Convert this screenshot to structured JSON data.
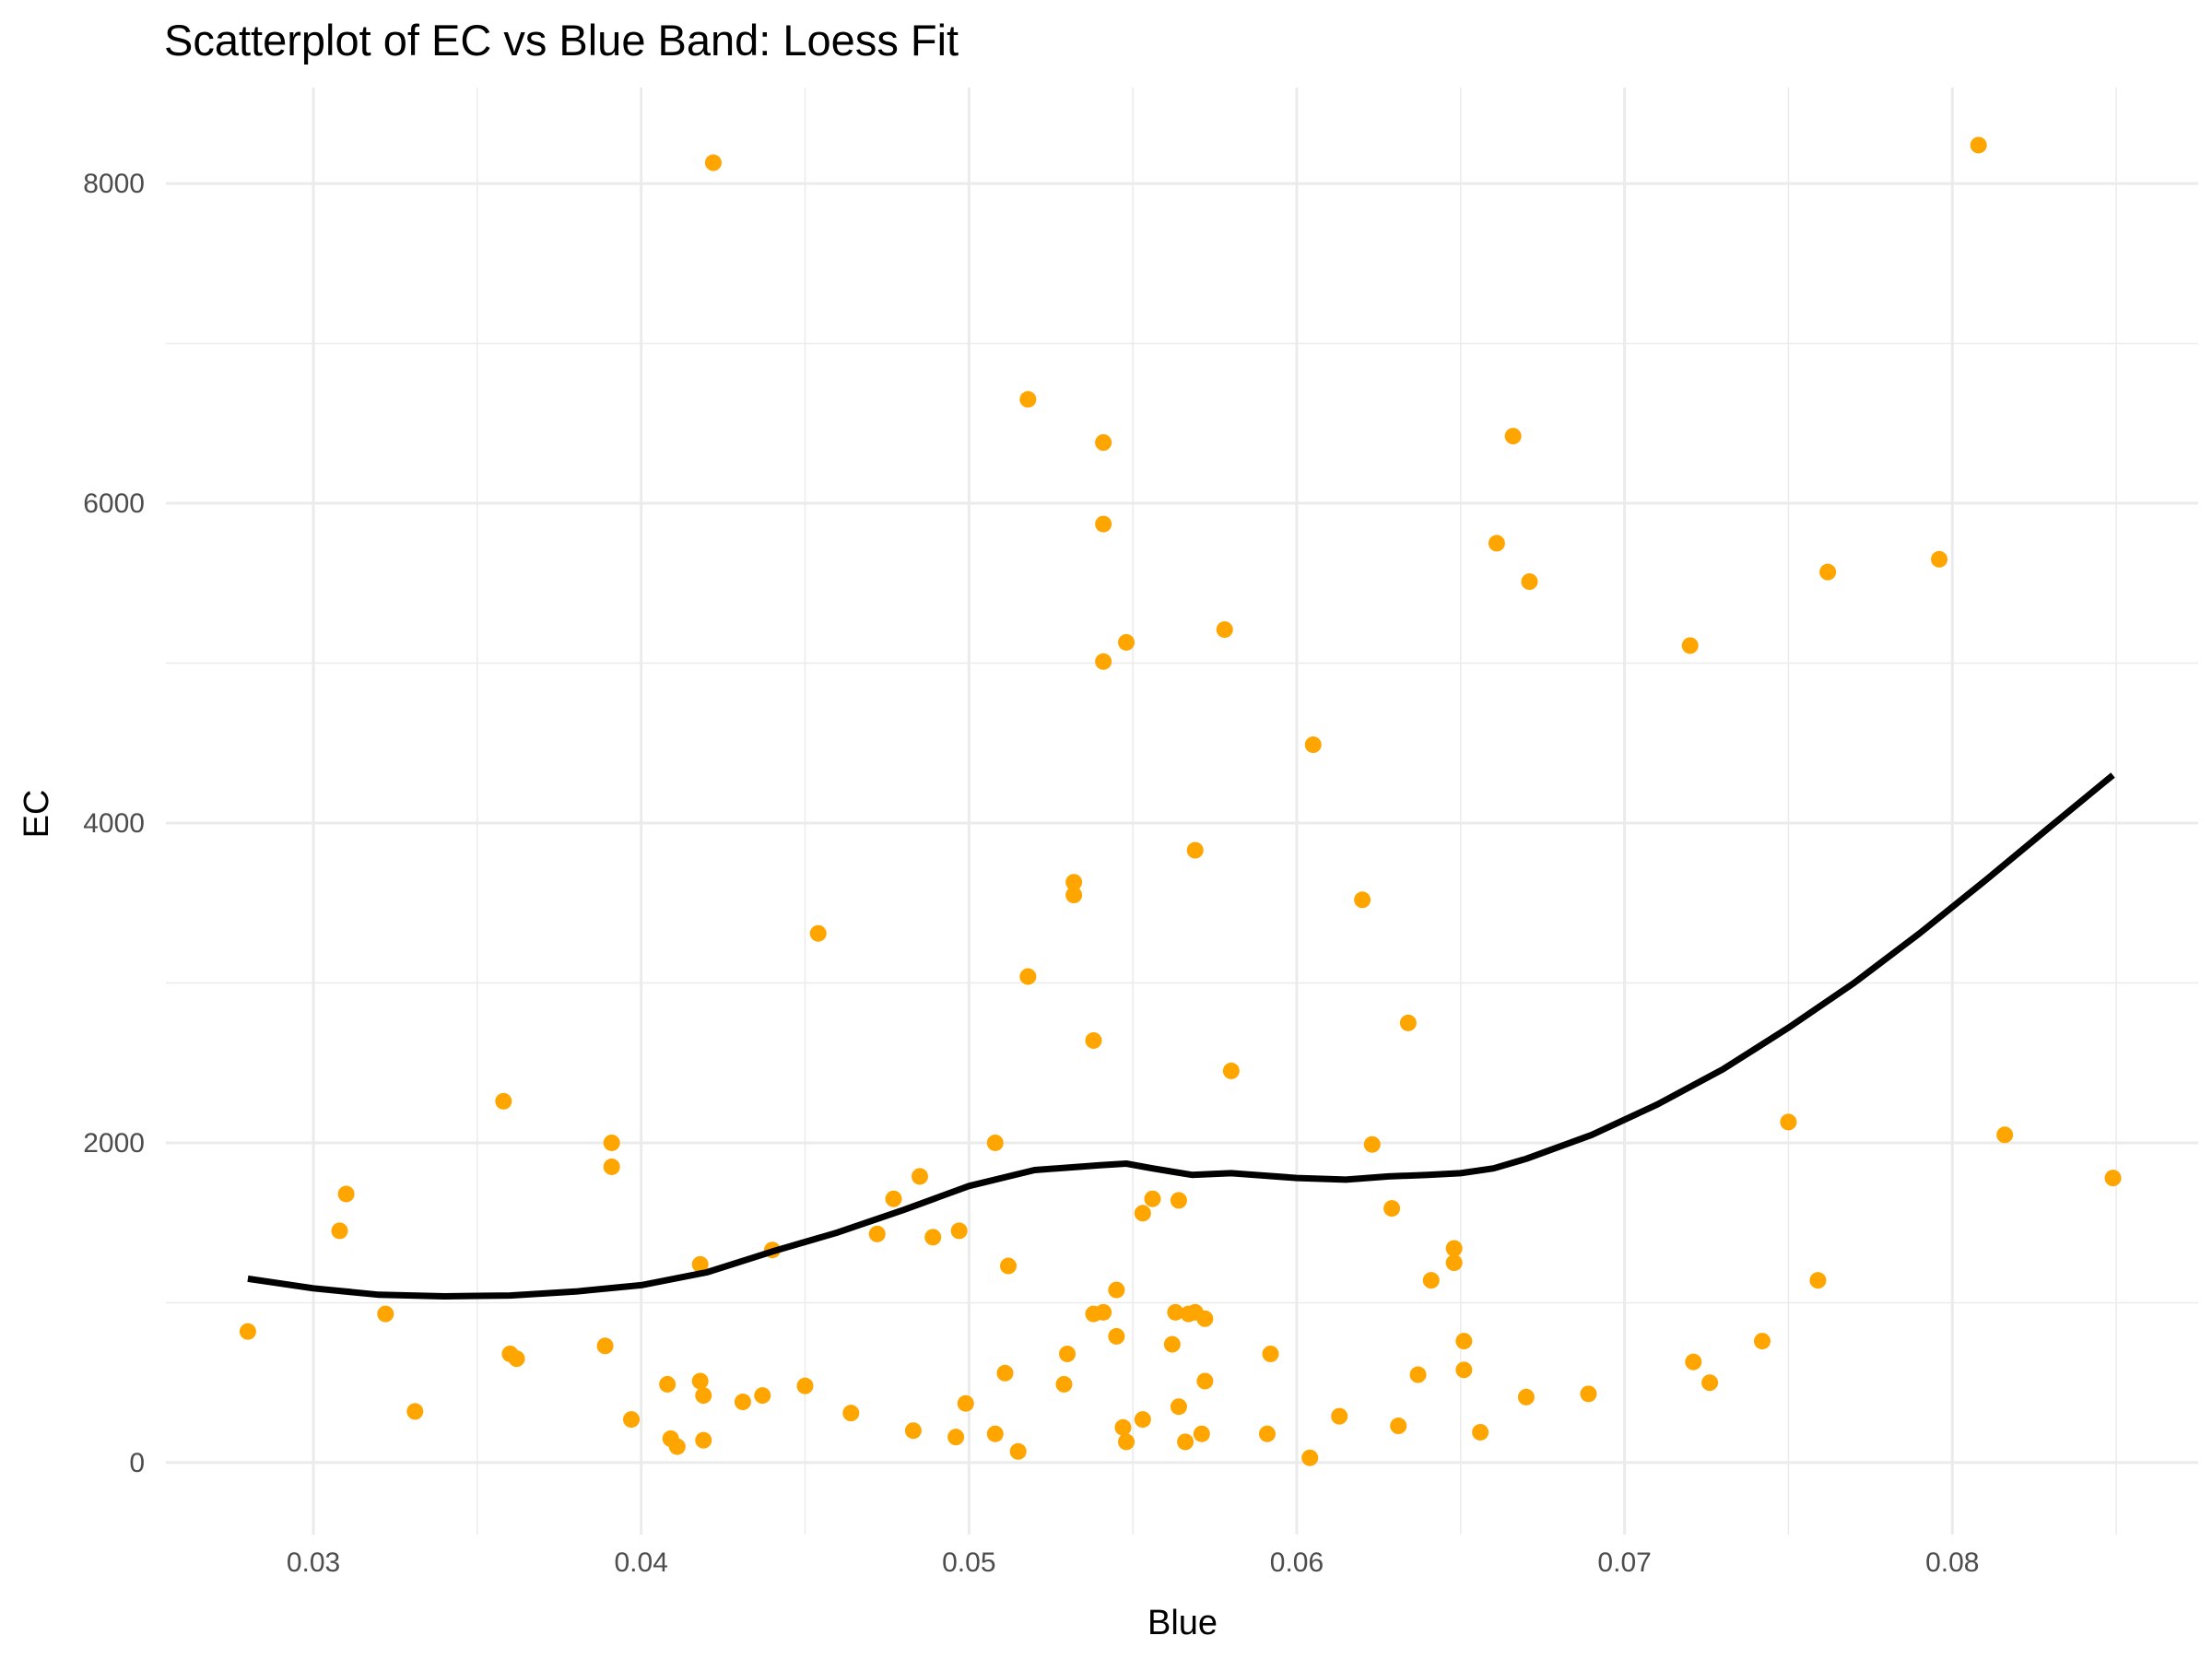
{
  "chart_data": {
    "type": "scatter",
    "title": "Scatterplot of EC vs Blue Band: Loess Fit",
    "xlabel": "Blue",
    "ylabel": "EC",
    "xlim": [
      0.0255,
      0.0875
    ],
    "ylim": [
      -450,
      8600
    ],
    "x_ticks": [
      0.03,
      0.04,
      0.05,
      0.06,
      0.07,
      0.08
    ],
    "x_tick_labels": [
      "0.03",
      "0.04",
      "0.05",
      "0.06",
      "0.07",
      "0.08"
    ],
    "y_ticks": [
      0,
      2000,
      4000,
      6000,
      8000
    ],
    "y_tick_labels": [
      "0",
      "2000",
      "4000",
      "6000",
      "8000"
    ],
    "grid": true,
    "legend": "none",
    "colors": {
      "points": "#FFA500",
      "fit": "#000000",
      "grid": "#ebebeb"
    },
    "series": [
      {
        "kind": "points",
        "points": [
          [
            0.028,
            820
          ],
          [
            0.0308,
            1450
          ],
          [
            0.031,
            1680
          ],
          [
            0.0322,
            930
          ],
          [
            0.0331,
            320
          ],
          [
            0.0358,
            2260
          ],
          [
            0.036,
            680
          ],
          [
            0.0362,
            650
          ],
          [
            0.0389,
            730
          ],
          [
            0.0391,
            2000
          ],
          [
            0.0391,
            1850
          ],
          [
            0.0397,
            270
          ],
          [
            0.0408,
            490
          ],
          [
            0.0409,
            150
          ],
          [
            0.0411,
            100
          ],
          [
            0.0418,
            1240
          ],
          [
            0.0418,
            510
          ],
          [
            0.0419,
            420
          ],
          [
            0.0419,
            140
          ],
          [
            0.0422,
            8130
          ],
          [
            0.0431,
            380
          ],
          [
            0.0437,
            420
          ],
          [
            0.044,
            1330
          ],
          [
            0.045,
            480
          ],
          [
            0.0454,
            3310
          ],
          [
            0.0464,
            310
          ],
          [
            0.0472,
            1430
          ],
          [
            0.0477,
            1650
          ],
          [
            0.0483,
            200
          ],
          [
            0.0485,
            1790
          ],
          [
            0.0489,
            1410
          ],
          [
            0.0496,
            160
          ],
          [
            0.0497,
            1450
          ],
          [
            0.0499,
            370
          ],
          [
            0.0508,
            2000
          ],
          [
            0.0508,
            180
          ],
          [
            0.0511,
            560
          ],
          [
            0.0512,
            1230
          ],
          [
            0.0515,
            70
          ],
          [
            0.0518,
            6650
          ],
          [
            0.0518,
            3040
          ],
          [
            0.0529,
            490
          ],
          [
            0.053,
            680
          ],
          [
            0.0532,
            3630
          ],
          [
            0.0532,
            3550
          ],
          [
            0.0538,
            2640
          ],
          [
            0.0538,
            930
          ],
          [
            0.0541,
            6380
          ],
          [
            0.0541,
            5870
          ],
          [
            0.0541,
            5010
          ],
          [
            0.0541,
            940
          ],
          [
            0.0545,
            1080
          ],
          [
            0.0545,
            790
          ],
          [
            0.0547,
            220
          ],
          [
            0.0548,
            130
          ],
          [
            0.0548,
            5130
          ],
          [
            0.0553,
            1560
          ],
          [
            0.0553,
            270
          ],
          [
            0.0556,
            1650
          ],
          [
            0.0562,
            740
          ],
          [
            0.0563,
            940
          ],
          [
            0.0564,
            1640
          ],
          [
            0.0564,
            350
          ],
          [
            0.0566,
            130
          ],
          [
            0.0567,
            930
          ],
          [
            0.0569,
            3830
          ],
          [
            0.0569,
            940
          ],
          [
            0.0571,
            180
          ],
          [
            0.0572,
            510
          ],
          [
            0.0572,
            900
          ],
          [
            0.0578,
            5210
          ],
          [
            0.058,
            2450
          ],
          [
            0.0591,
            180
          ],
          [
            0.0592,
            680
          ],
          [
            0.0604,
            30
          ],
          [
            0.0605,
            4490
          ],
          [
            0.0613,
            290
          ],
          [
            0.062,
            3520
          ],
          [
            0.0623,
            1990
          ],
          [
            0.0629,
            1590
          ],
          [
            0.0631,
            230
          ],
          [
            0.0634,
            2750
          ],
          [
            0.0637,
            550
          ],
          [
            0.0641,
            1140
          ],
          [
            0.0648,
            1340
          ],
          [
            0.0648,
            1250
          ],
          [
            0.0651,
            760
          ],
          [
            0.0651,
            580
          ],
          [
            0.0656,
            190
          ],
          [
            0.0661,
            5750
          ],
          [
            0.0666,
            6420
          ],
          [
            0.067,
            410
          ],
          [
            0.0671,
            5510
          ],
          [
            0.0689,
            430
          ],
          [
            0.072,
            5110
          ],
          [
            0.0721,
            630
          ],
          [
            0.0726,
            500
          ],
          [
            0.0742,
            760
          ],
          [
            0.075,
            2130
          ],
          [
            0.0759,
            1140
          ],
          [
            0.0762,
            5570
          ],
          [
            0.0796,
            5650
          ],
          [
            0.0808,
            8240
          ],
          [
            0.0816,
            2050
          ],
          [
            0.0849,
            1780
          ]
        ]
      },
      {
        "kind": "loess",
        "points": [
          [
            0.028,
            1150
          ],
          [
            0.03,
            1090
          ],
          [
            0.032,
            1050
          ],
          [
            0.034,
            1040
          ],
          [
            0.036,
            1045
          ],
          [
            0.038,
            1070
          ],
          [
            0.04,
            1110
          ],
          [
            0.042,
            1190
          ],
          [
            0.044,
            1320
          ],
          [
            0.046,
            1440
          ],
          [
            0.048,
            1580
          ],
          [
            0.05,
            1730
          ],
          [
            0.052,
            1830
          ],
          [
            0.054,
            1860
          ],
          [
            0.0548,
            1870
          ],
          [
            0.0556,
            1840
          ],
          [
            0.0568,
            1800
          ],
          [
            0.058,
            1810
          ],
          [
            0.06,
            1780
          ],
          [
            0.0615,
            1770
          ],
          [
            0.0628,
            1790
          ],
          [
            0.064,
            1800
          ],
          [
            0.065,
            1810
          ],
          [
            0.066,
            1840
          ],
          [
            0.067,
            1900
          ],
          [
            0.069,
            2050
          ],
          [
            0.071,
            2240
          ],
          [
            0.073,
            2460
          ],
          [
            0.075,
            2720
          ],
          [
            0.077,
            3000
          ],
          [
            0.079,
            3310
          ],
          [
            0.081,
            3640
          ],
          [
            0.083,
            3980
          ],
          [
            0.0849,
            4300
          ]
        ]
      }
    ]
  }
}
